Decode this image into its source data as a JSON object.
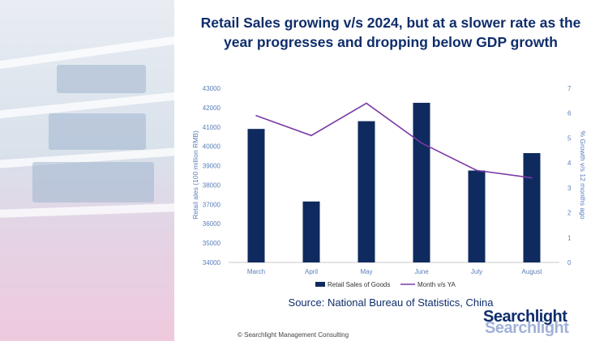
{
  "title_line1": "Retail Sales growing v/s 2024, but at a slower rate as the",
  "title_line2": "year progresses and dropping below GDP growth",
  "source": "Source: National Bureau of Statistics, China",
  "copyright": "©  Searchlight Management Consulting",
  "logo_text": "Searchlight",
  "colors": {
    "bar": "#0f2a5e",
    "line": "#7a3aa6",
    "axis_text": "#5a7db8",
    "title": "#0f2d6b"
  },
  "chart_data": {
    "type": "bar",
    "categories": [
      "March",
      "April",
      "May",
      "June",
      "July",
      "August"
    ],
    "series": [
      {
        "name": "Retail Sales of Goods",
        "type": "bar",
        "axis": "left",
        "values": [
          40900,
          37150,
          41300,
          42250,
          38750,
          39650
        ]
      },
      {
        "name": "Month v/s YA",
        "type": "line",
        "axis": "right",
        "values": [
          5.9,
          5.1,
          6.4,
          4.8,
          3.7,
          3.4
        ]
      }
    ],
    "y_left": {
      "label": "Retail ales (100 million RMB)",
      "min": 34000,
      "max": 43000,
      "ticks": [
        "34000",
        "35000",
        "36000",
        "37000",
        "38000",
        "39000",
        "40000",
        "41000",
        "42000",
        "43000"
      ]
    },
    "y_right": {
      "label": "% Growth v/s 12 months ago",
      "min": 0,
      "max": 7,
      "ticks": [
        "0",
        "1",
        "2",
        "3",
        "4",
        "5",
        "6",
        "7"
      ]
    },
    "legend_position": "bottom",
    "grid": false
  }
}
